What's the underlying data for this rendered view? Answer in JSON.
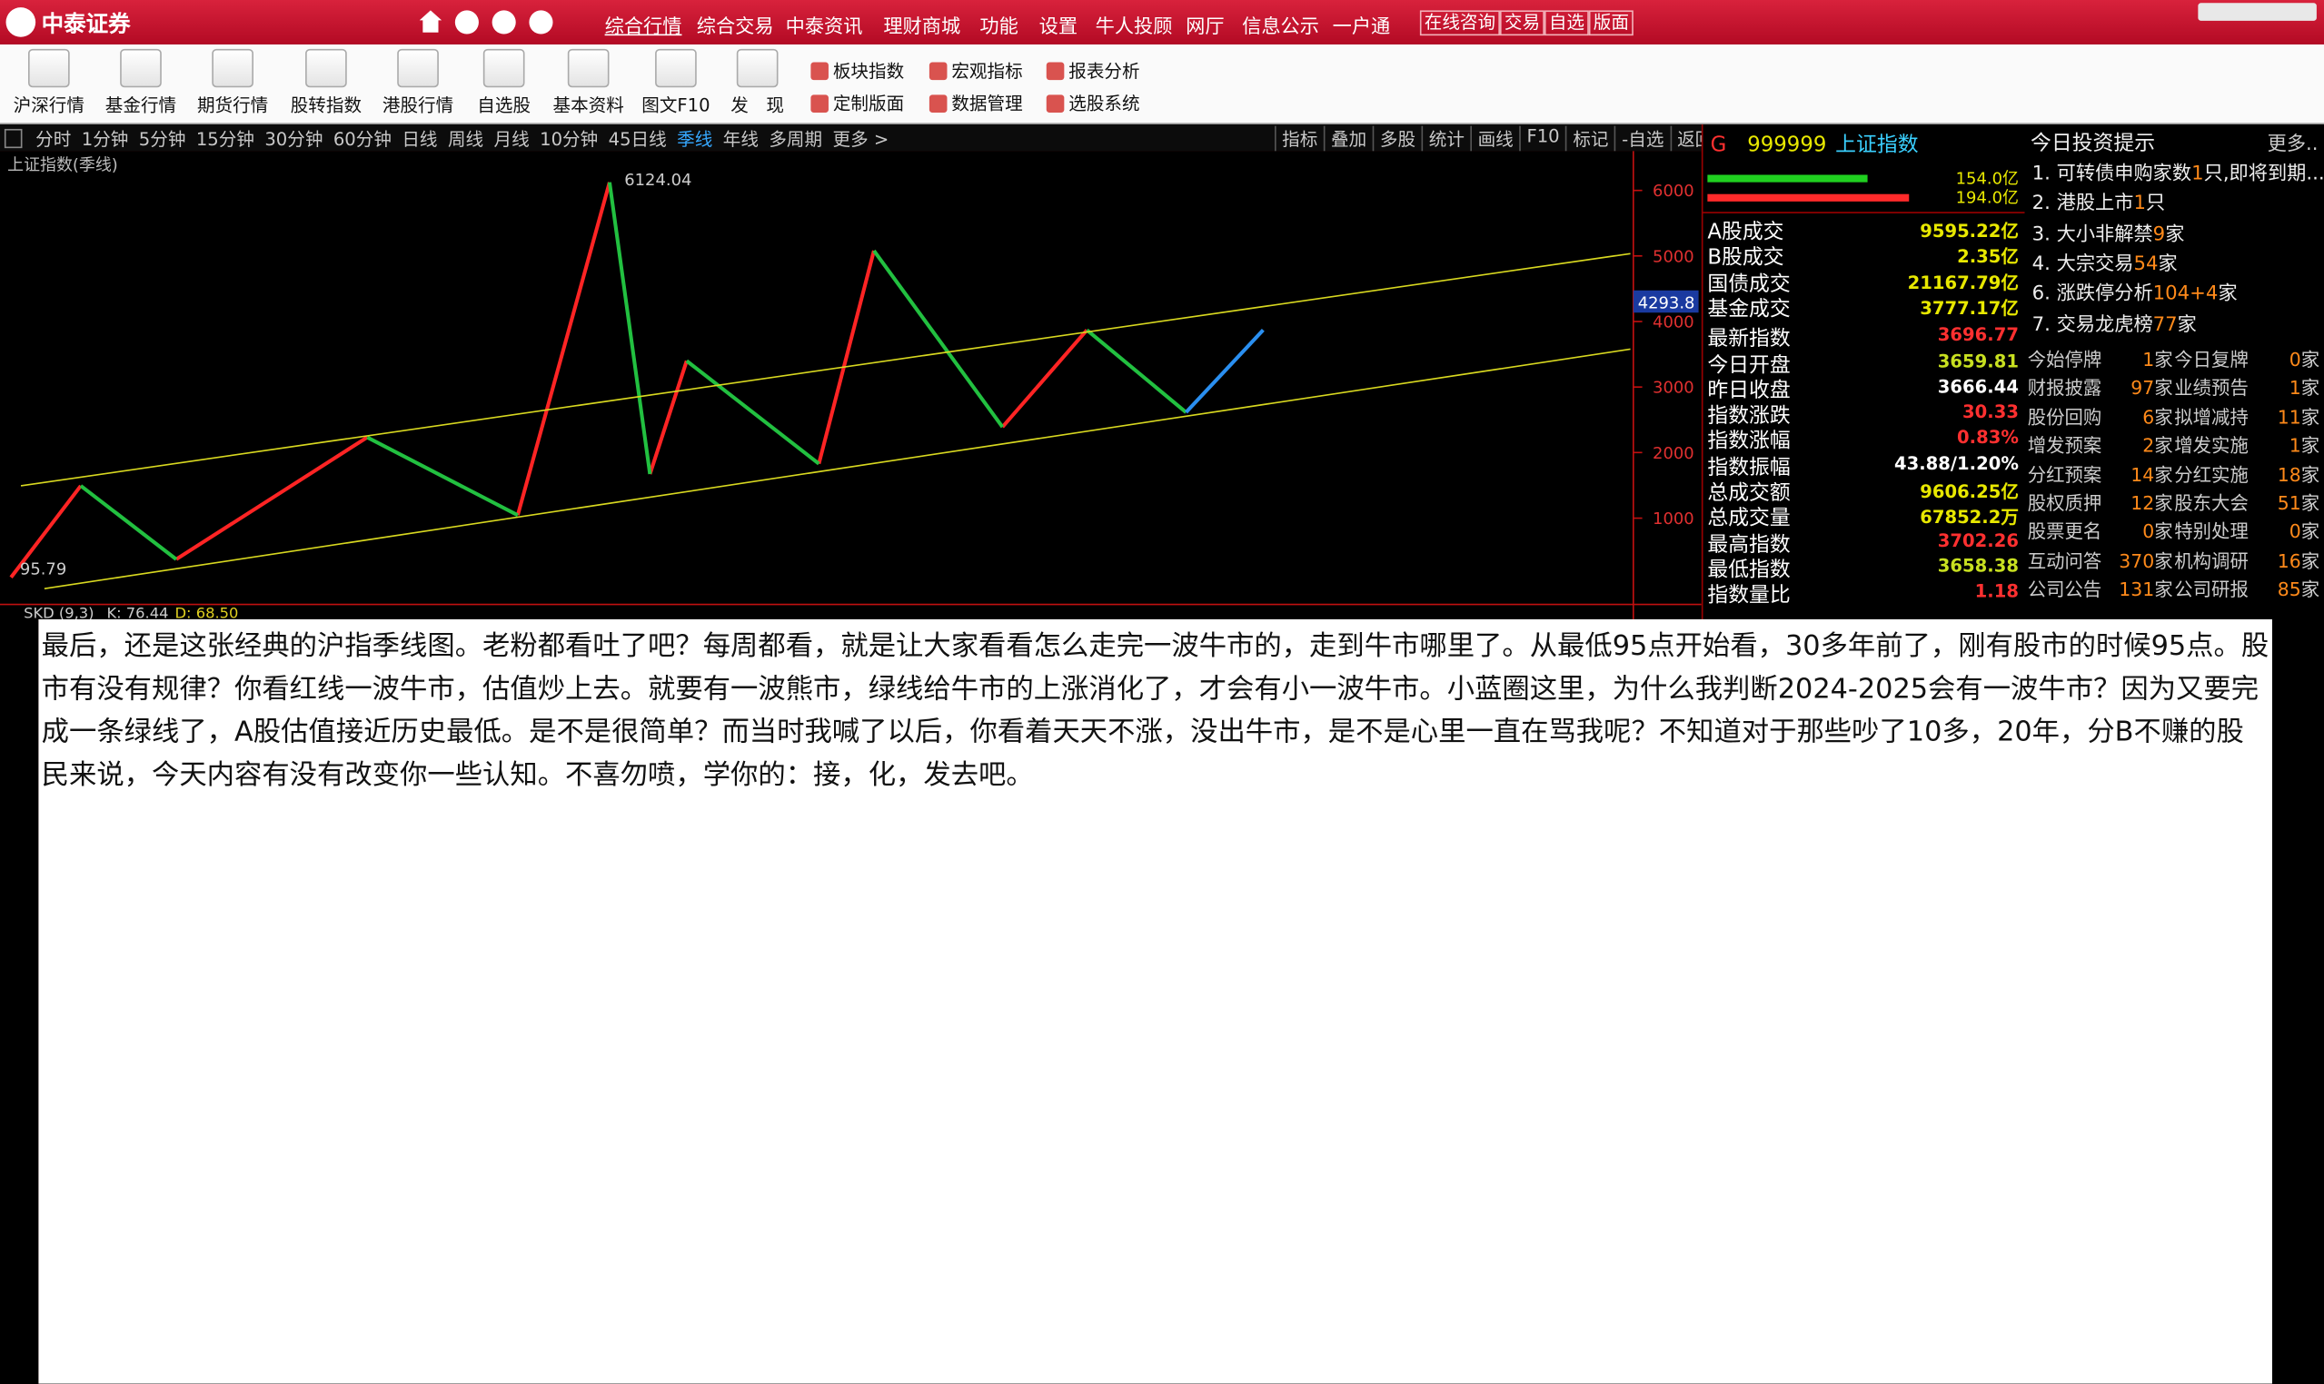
{
  "title_bar": {
    "logo": "中泰证券",
    "nav": [
      "综合行情",
      "综合交易",
      "中泰资讯",
      "理财商城",
      "功能",
      "设置",
      "牛人投顾",
      "网厅",
      "信息公示",
      "一户通"
    ],
    "buttons": [
      "在线咨询",
      "交易",
      "自选",
      "版面"
    ]
  },
  "toolbar": {
    "big": [
      "沪深行情",
      "基金行情",
      "期货行情",
      "股转指数",
      "港股行情",
      "自选股",
      "基本资料",
      "图文F10",
      "发　现"
    ],
    "small": [
      "板块指数",
      "宏观指标",
      "报表分析",
      "定制版面",
      "数据管理",
      "选股系统"
    ]
  },
  "period_tabs": {
    "items": [
      "分时",
      "1分钟",
      "5分钟",
      "15分钟",
      "30分钟",
      "60分钟",
      "日线",
      "周线",
      "月线",
      "10分钟",
      "45日线",
      "季线",
      "年线",
      "多周期",
      "更多 >"
    ],
    "active": 11,
    "tools": [
      "指标",
      "叠加",
      "多股",
      "统计",
      "画线",
      "F10",
      "标记",
      "-自选",
      "返回"
    ]
  },
  "chart_data": {
    "type": "line",
    "title": "上证指数(季线)",
    "xlim": [
      1990.6,
      2035.0
    ],
    "ylim": [
      -250,
      6600
    ],
    "yticks": [
      1000,
      2000,
      3000,
      4000,
      5000,
      6000
    ],
    "series": [
      {
        "color": "#ff2424",
        "x": [
          1990.9,
          1992.8,
          null,
          1995.4,
          2000.6,
          null,
          2004.7,
          2007.2,
          null,
          2008.3,
          2009.3,
          null,
          2012.9,
          2014.4,
          null,
          2017.9,
          2020.2
        ],
        "values": [
          95.79,
          1493,
          null,
          372,
          2233,
          null,
          1045,
          6124.04,
          null,
          1672,
          3399,
          null,
          1830,
          5081,
          null,
          2390,
          3870
        ]
      },
      {
        "color": "#22c040",
        "x": [
          1992.8,
          1995.4,
          null,
          2000.6,
          2004.7,
          null,
          2007.2,
          2008.3,
          null,
          2009.3,
          2012.9,
          null,
          2014.4,
          2017.9,
          null,
          2020.2,
          2022.9
        ],
        "values": [
          1493,
          372,
          null,
          2233,
          1045,
          null,
          6124.04,
          1672,
          null,
          3399,
          1830,
          null,
          5081,
          2390,
          null,
          3870,
          2614
        ]
      },
      {
        "color": "#2a8ff0",
        "x": [
          2022.9,
          2025.0
        ],
        "values": [
          2614,
          3870
        ]
      },
      {
        "color": "#d8d820",
        "x": [
          1991.17,
          2035.0
        ],
        "values": [
          1493,
          5036
        ]
      },
      {
        "color": "#d8d820",
        "x": [
          1991.81,
          2035.0
        ],
        "values": [
          -76,
          3578
        ]
      }
    ],
    "high": {
      "x": 2007.2,
      "value": 6124.04
    },
    "low": {
      "x": 1990.9,
      "value": 95.79
    },
    "cursor": 4293.8,
    "axis_color": "#c01010"
  },
  "indicator": {
    "name": "SKD (9,3)",
    "k": "K: 76.44",
    "d": "D: 68.50"
  },
  "quote": {
    "flag": "G",
    "code": "999999",
    "name": "上证指数",
    "bars": [
      {
        "label": "154.0亿",
        "value": 154.0,
        "color": "#20d020"
      },
      {
        "label": "194.0亿",
        "value": 194.0,
        "color": "#ff2a2a"
      }
    ],
    "rows": [
      {
        "label": "A股成交",
        "value": "9595.22亿",
        "color": "#e8e800"
      },
      {
        "label": "B股成交",
        "value": "2.35亿",
        "color": "#e8e800"
      },
      {
        "label": "国债成交",
        "value": "21167.79亿",
        "color": "#e8e800"
      },
      {
        "label": "基金成交",
        "value": "3777.17亿",
        "color": "#e8e800"
      },
      {
        "label": "最新指数",
        "value": "3696.77",
        "color": "#ff3030"
      },
      {
        "label": "今日开盘",
        "value": "3659.81",
        "color": "#c8e020"
      },
      {
        "label": "昨日收盘",
        "value": "3666.44",
        "color": "#ffffff"
      },
      {
        "label": "指数涨跌",
        "value": "30.33",
        "color": "#ff3030"
      },
      {
        "label": "指数涨幅",
        "value": "0.83%",
        "color": "#ff3030"
      },
      {
        "label": "指数振幅",
        "value": "43.88/1.20%",
        "color": "#ffffff"
      },
      {
        "label": "总成交额",
        "value": "9606.25亿",
        "color": "#e8e800"
      },
      {
        "label": "总成交量",
        "value": "67852.2万",
        "color": "#e8e800"
      },
      {
        "label": "最高指数",
        "value": "3702.26",
        "color": "#ff3030"
      },
      {
        "label": "最低指数",
        "value": "3658.38",
        "color": "#c8e020"
      },
      {
        "label": "指数量比",
        "value": "1.18",
        "color": "#ff3030"
      }
    ]
  },
  "tips": {
    "title": "今日投资提示",
    "more": "更多..",
    "items": [
      {
        "label": "1. 可转债申购家数",
        "count": "1",
        "unit": "只,即将到期..."
      },
      {
        "label": "2. 港股上市",
        "count": "1",
        "unit": "只"
      },
      {
        "label": "3. 大小非解禁",
        "count": "9",
        "unit": "家"
      },
      {
        "label": "4. 大宗交易",
        "count": "54",
        "unit": "家"
      },
      {
        "label": "6. 涨跌停分析",
        "count": "104+4",
        "unit": "家"
      },
      {
        "label": "7. 交易龙虎榜",
        "count": "77",
        "unit": "家"
      }
    ],
    "grid": [
      [
        {
          "label": "今始停牌",
          "count": 1,
          "unit": "家"
        },
        {
          "label": "今日复牌",
          "count": 0,
          "unit": "家"
        }
      ],
      [
        {
          "label": "财报披露",
          "count": 97,
          "unit": "家"
        },
        {
          "label": "业绩预告",
          "count": 1,
          "unit": "家"
        }
      ],
      [
        {
          "label": "股份回购",
          "count": 6,
          "unit": "家"
        },
        {
          "label": "拟增减持",
          "count": 11,
          "unit": "家"
        }
      ],
      [
        {
          "label": "增发预案",
          "count": 2,
          "unit": "家"
        },
        {
          "label": "增发实施",
          "count": 1,
          "unit": "家"
        }
      ],
      [
        {
          "label": "分红预案",
          "count": 14,
          "unit": "家"
        },
        {
          "label": "分红实施",
          "count": 18,
          "unit": "家"
        }
      ],
      [
        {
          "label": "股权质押",
          "count": 12,
          "unit": "家"
        },
        {
          "label": "股东大会",
          "count": 51,
          "unit": "家"
        }
      ],
      [
        {
          "label": "股票更名",
          "count": 0,
          "unit": "家"
        },
        {
          "label": "特别处理",
          "count": 0,
          "unit": "家"
        }
      ],
      [
        {
          "label": "互动问答",
          "count": 370,
          "unit": "家"
        },
        {
          "label": "机构调研",
          "count": 16,
          "unit": "家"
        }
      ],
      [
        {
          "label": "公司公告",
          "count": 131,
          "unit": "家"
        },
        {
          "label": "公司研报",
          "count": 85,
          "unit": "家"
        }
      ]
    ]
  },
  "post": {
    "text": "最后，还是这张经典的沪指季线图。老粉都看吐了吧？每周都看，就是让大家看看怎么走完一波牛市的，走到牛市哪里了。从最低95点开始看，30多年前了，刚有股市的时候95点。股市有没有规律？你看红线一波牛市，估值炒上去。就要有一波熊市，绿线给牛市的上涨消化了，才会有小一波牛市。小蓝圈这里，为什么我判断2024-2025会有一波牛市？因为又要完成一条绿线了，A股估值接近历史最低。是不是很简单？而当时我喊了以后，你看着天天不涨，没出牛市，是不是心里一直在骂我呢？不知道对于那些吵了10多，20年，分B不赚的股民来说，今天内容有没有改变你一些认知。不喜勿喷，学你的：接，化，发去吧。"
  }
}
